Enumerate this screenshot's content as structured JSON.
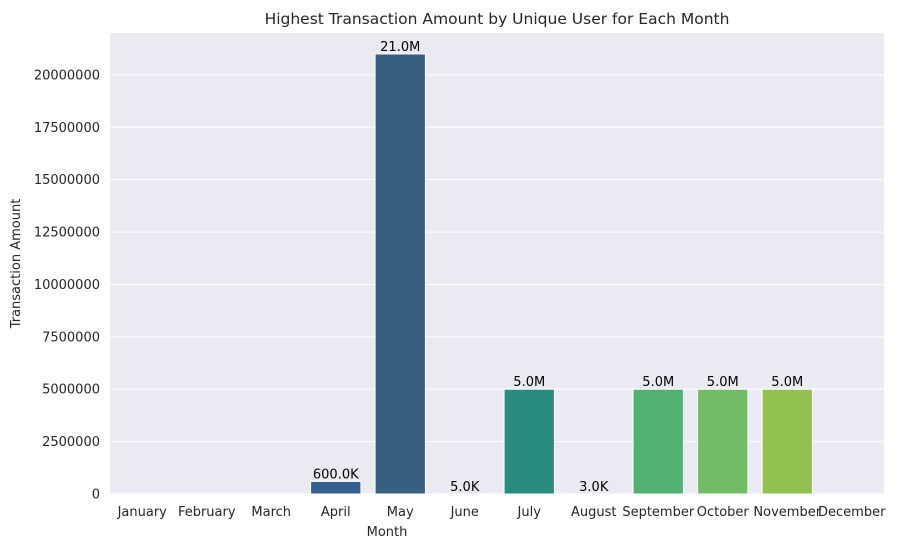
{
  "chart_data": {
    "type": "bar",
    "title": "Highest Transaction Amount by Unique User for Each Month",
    "xlabel": "Month",
    "ylabel": "Transaction Amount",
    "ylim": [
      0,
      22000000
    ],
    "yticks": [
      0,
      2500000,
      5000000,
      7500000,
      10000000,
      12500000,
      15000000,
      17500000,
      20000000
    ],
    "grid": true,
    "categories": [
      "January",
      "February",
      "March",
      "April",
      "May",
      "June",
      "July",
      "August",
      "September",
      "October",
      "November",
      "December"
    ],
    "values": [
      0,
      0,
      0,
      600000,
      21000000,
      5000,
      5000000,
      3000,
      5000000,
      5000000,
      5000000,
      0
    ],
    "data_labels": [
      "",
      "",
      "",
      "600.0K",
      "21.0M",
      "5.0K",
      "5.0M",
      "3.0K",
      "5.0M",
      "5.0M",
      "5.0M",
      ""
    ],
    "colors": [
      "#482475",
      "#414487",
      "#355f8d",
      "#2a788e",
      "#21918c",
      "#22a884",
      "#44bf70",
      "#7ad151",
      "#bddf26",
      "#fde725"
    ],
    "bar_colors": [
      "#46327e",
      "#3e4989",
      "#365c8d",
      "#355f8d",
      "#365f7f",
      "#21918c",
      "#2a8b7f",
      "#3bbb75",
      "#52b072",
      "#72bc68",
      "#92c14f",
      "#c2df23"
    ],
    "background": "#eaeaf2"
  }
}
